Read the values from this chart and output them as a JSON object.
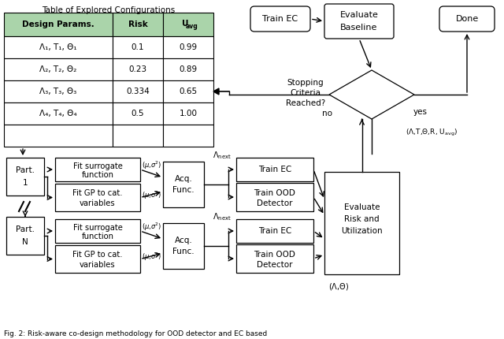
{
  "title": "Table of Explored Configurations",
  "caption": "Fig. 2: Risk-aware co-design methodology for OOD detector and EC based",
  "table": {
    "headers": [
      "Design Params.",
      "Risk",
      "U_avg"
    ],
    "rows": [
      [
        "Λ₁, T₁, Θ₁",
        "0.1",
        "0.99"
      ],
      [
        "Λ₂, T₂, Θ₂",
        "0.23",
        "0.89"
      ],
      [
        "Λ₃, T₃, Θ₃",
        "0.334",
        "0.65"
      ],
      [
        "Λ₄, T₄, Θ₄",
        "0.5",
        "1.00"
      ],
      [
        "",
        "",
        ""
      ]
    ],
    "header_bg": "#aad4aa",
    "cell_bg": "#ffffff",
    "border_color": "#333333"
  },
  "bg_color": "#ffffff",
  "box_color": "#ffffff",
  "border_color": "#000000",
  "arrow_color": "#000000",
  "text_color": "#000000",
  "font_size": 7.0,
  "font_size_small": 6.0
}
